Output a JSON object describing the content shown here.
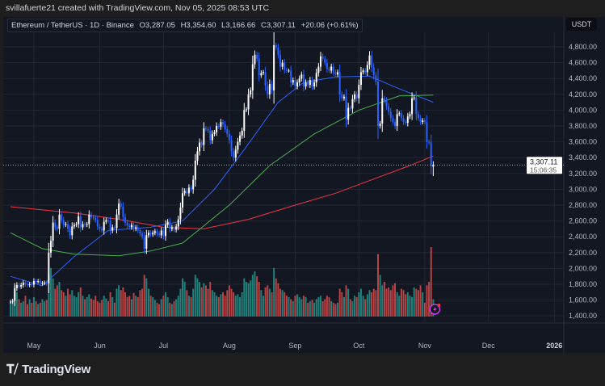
{
  "attribution": "svillafuerte21 created with TradingView.com, Nov 05, 2025 08:53 UTC",
  "legend": {
    "symbol": "Ethereum / TetherUS · 1D · Binance",
    "open": "O3,287.05",
    "high": "H3,354.60",
    "low": "L3,166.66",
    "close": "C3,307.11",
    "change": "+20.06 (+0.61%)"
  },
  "currency": "USDT",
  "last_price_label": {
    "price": "3,307.11",
    "countdown": "15:06:35"
  },
  "brand": "TradingView",
  "colors": {
    "background": "#131722",
    "up_candle": "#ffffff",
    "down_candle": "#2962ff",
    "up_volume": "#26a69a",
    "down_volume": "#ef5350",
    "ma_fast": "#2962ff",
    "ma_mid": "#4caf50",
    "ma_slow": "#f23645",
    "alert_icon": "#e040fb"
  },
  "chart_data": {
    "type": "candlestick",
    "start_date": "2025-04-20",
    "interval": "1D",
    "ylim": [
      1400,
      4900
    ],
    "y_ticks": [
      "4,800.00",
      "4,600.00",
      "4,400.00",
      "4,200.00",
      "4,000.00",
      "3,800.00",
      "3,600.00",
      "3,400.00",
      "3,200.00",
      "3,000.00",
      "2,800.00",
      "2,600.00",
      "2,400.00",
      "2,200.00",
      "2,000.00",
      "1,800.00",
      "1,600.00",
      "1,400.00"
    ],
    "y_tick_values": [
      4800,
      4600,
      4400,
      4200,
      4000,
      3800,
      3600,
      3400,
      3200,
      3000,
      2800,
      2600,
      2400,
      2200,
      2000,
      1800,
      1600,
      1400
    ],
    "x_ticks": [
      {
        "label": "May",
        "date": "2025-05-01"
      },
      {
        "label": "Jun",
        "date": "2025-06-01"
      },
      {
        "label": "Jul",
        "date": "2025-07-01"
      },
      {
        "label": "Aug",
        "date": "2025-08-01"
      },
      {
        "label": "Sep",
        "date": "2025-09-01"
      },
      {
        "label": "Oct",
        "date": "2025-10-01"
      },
      {
        "label": "Nov",
        "date": "2025-11-01"
      },
      {
        "label": "Dec",
        "date": "2025-12-01"
      },
      {
        "label": "2026",
        "date": "2026-01-01"
      }
    ],
    "last_candle": {
      "date": "2025-11-05",
      "open": 3287.05,
      "high": 3354.6,
      "low": 3166.66,
      "close": 3307.11
    },
    "close": [
      1580,
      1590,
      1750,
      1790,
      1770,
      1790,
      1820,
      1800,
      1790,
      1800,
      1795,
      1840,
      1835,
      1840,
      1810,
      1815,
      1820,
      1810,
      2200,
      2350,
      2580,
      2520,
      2500,
      2680,
      2610,
      2550,
      2560,
      2500,
      2420,
      2530,
      2550,
      2560,
      2660,
      2520,
      2560,
      2550,
      2560,
      2680,
      2650,
      2640,
      2610,
      2530,
      2500,
      2480,
      2590,
      2610,
      2600,
      2480,
      2520,
      2510,
      2680,
      2820,
      2780,
      2650,
      2580,
      2540,
      2520,
      2550,
      2500,
      2520,
      2480,
      2440,
      2400,
      2250,
      2420,
      2450,
      2430,
      2450,
      2470,
      2440,
      2420,
      2480,
      2410,
      2550,
      2590,
      2500,
      2520,
      2490,
      2530,
      2620,
      2770,
      2950,
      2980,
      2950,
      3020,
      3000,
      3120,
      3360,
      3480,
      3590,
      3560,
      3770,
      3760,
      3740,
      3620,
      3700,
      3720,
      3800,
      3790,
      3850,
      3820,
      3760,
      3700,
      3620,
      3480,
      3400,
      3500,
      3600,
      3680,
      3740,
      4000,
      4010,
      4200,
      4250,
      4580,
      4700,
      4650,
      4440,
      4470,
      4480,
      4310,
      4200,
      4330,
      4250,
      4820,
      4790,
      4700,
      4550,
      4600,
      4510,
      4500,
      4500,
      4350,
      4380,
      4300,
      4350,
      4400,
      4450,
      4300,
      4350,
      4320,
      4380,
      4300,
      4350,
      4470,
      4550,
      4680,
      4650,
      4600,
      4520,
      4500,
      4550,
      4480,
      4450,
      4480,
      4200,
      4150,
      4170,
      3880,
      4030,
      4020,
      4140,
      4200,
      4150,
      4320,
      4480,
      4500,
      4480,
      4570,
      4690,
      4540,
      4440,
      4360,
      3800,
      3830,
      4150,
      4120,
      4050,
      3980,
      3900,
      3850,
      3800,
      3950,
      3960,
      3900,
      3850,
      3840,
      3920,
      3950,
      4150,
      4160,
      3950,
      3900,
      3850,
      3870,
      3850,
      3600,
      3590,
      3290,
      3307.11
    ],
    "volume_relative": [
      20,
      22,
      45,
      35,
      25,
      20,
      22,
      30,
      18,
      25,
      20,
      28,
      22,
      18,
      20,
      25,
      22,
      24,
      60,
      70,
      55,
      40,
      45,
      50,
      38,
      35,
      30,
      40,
      32,
      38,
      30,
      28,
      35,
      42,
      30,
      25,
      28,
      32,
      26,
      24,
      30,
      22,
      20,
      24,
      30,
      26,
      22,
      35,
      28,
      20,
      40,
      45,
      38,
      42,
      35,
      28,
      30,
      25,
      34,
      30,
      28,
      38,
      40,
      60,
      55,
      40,
      30,
      28,
      24,
      20,
      18,
      25,
      30,
      35,
      28,
      20,
      18,
      22,
      25,
      30,
      40,
      55,
      50,
      38,
      30,
      28,
      40,
      60,
      55,
      50,
      42,
      48,
      45,
      40,
      50,
      38,
      35,
      30,
      28,
      32,
      35,
      30,
      38,
      45,
      40,
      35,
      30,
      32,
      28,
      35,
      55,
      50,
      48,
      52,
      60,
      65,
      58,
      50,
      38,
      30,
      42,
      45,
      40,
      35,
      70,
      55,
      48,
      40,
      38,
      35,
      30,
      28,
      25,
      22,
      30,
      32,
      28,
      25,
      30,
      28,
      20,
      22,
      24,
      20,
      25,
      28,
      30,
      22,
      25,
      30,
      28,
      22,
      20,
      18,
      20,
      40,
      35,
      28,
      45,
      40,
      25,
      22,
      30,
      28,
      35,
      40,
      30,
      25,
      32,
      38,
      35,
      40,
      38,
      90,
      60,
      45,
      50,
      40,
      42,
      38,
      45,
      48,
      35,
      30,
      40,
      38,
      32,
      35,
      30,
      28,
      42,
      40,
      38,
      45,
      35,
      20,
      45,
      50,
      100,
      25
    ],
    "moving_averages": [
      {
        "color_key": "ma_fast",
        "points": [
          [
            "2025-04-20",
            1900
          ],
          [
            "2025-05-05",
            1780
          ],
          [
            "2025-05-20",
            2150
          ],
          [
            "2025-06-05",
            2480
          ],
          [
            "2025-06-25",
            2520
          ],
          [
            "2025-07-10",
            2600
          ],
          [
            "2025-07-25",
            3000
          ],
          [
            "2025-08-08",
            3500
          ],
          [
            "2025-08-24",
            4100
          ],
          [
            "2025-09-05",
            4350
          ],
          [
            "2025-09-20",
            4420
          ],
          [
            "2025-10-06",
            4430
          ],
          [
            "2025-10-20",
            4270
          ],
          [
            "2025-11-05",
            4100
          ]
        ]
      },
      {
        "color_key": "ma_mid",
        "points": [
          [
            "2025-04-20",
            2450
          ],
          [
            "2025-05-05",
            2250
          ],
          [
            "2025-05-20",
            2180
          ],
          [
            "2025-06-10",
            2160
          ],
          [
            "2025-06-25",
            2220
          ],
          [
            "2025-07-10",
            2320
          ],
          [
            "2025-08-01",
            2800
          ],
          [
            "2025-08-20",
            3300
          ],
          [
            "2025-09-10",
            3700
          ],
          [
            "2025-10-01",
            4000
          ],
          [
            "2025-10-20",
            4180
          ],
          [
            "2025-11-05",
            4190
          ]
        ]
      },
      {
        "color_key": "ma_slow",
        "points": [
          [
            "2025-04-20",
            2780
          ],
          [
            "2025-05-20",
            2700
          ],
          [
            "2025-06-10",
            2620
          ],
          [
            "2025-07-01",
            2520
          ],
          [
            "2025-07-20",
            2500
          ],
          [
            "2025-08-10",
            2620
          ],
          [
            "2025-09-01",
            2800
          ],
          [
            "2025-09-20",
            2950
          ],
          [
            "2025-10-10",
            3150
          ],
          [
            "2025-10-25",
            3300
          ],
          [
            "2025-11-05",
            3420
          ]
        ]
      }
    ]
  }
}
